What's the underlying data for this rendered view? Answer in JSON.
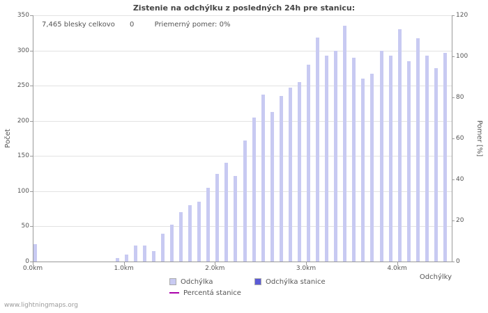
{
  "stats": {
    "total": "7,465 blesky celkovo",
    "station": "0",
    "ratio": "Priemerný pomer: 0%"
  },
  "footer": "www.lightningmaps.org",
  "legend": [
    {
      "label": "Odchýlka",
      "type": "swatch",
      "color": "#c8caf2"
    },
    {
      "label": "Odchýlka stanice",
      "type": "swatch",
      "color": "#5b5bd6"
    },
    {
      "label": "Percentá stanice",
      "type": "line",
      "color": "#aa00aa"
    }
  ],
  "chart_data": {
    "type": "bar",
    "title": "Zistenie na odchýlku z posledných 24h pre stanicu:",
    "x_axis_label": "Odchýlky",
    "x_unit": "km",
    "x_start": 0,
    "x_step": 0.1,
    "x_domain_max": 4.6,
    "x_ticks": [
      {
        "label": "0.0km",
        "km": 0
      },
      {
        "label": "1.0km",
        "km": 1
      },
      {
        "label": "2.0km",
        "km": 2
      },
      {
        "label": "3.0km",
        "km": 3
      },
      {
        "label": "4.0km",
        "km": 4
      }
    ],
    "y_left": {
      "label": "Počet",
      "min": 0,
      "max": 350,
      "ticks": [
        0,
        50,
        100,
        150,
        200,
        250,
        300,
        350
      ]
    },
    "y_right": {
      "label": "Pomer [%]",
      "min": 0,
      "max": 120,
      "ticks": [
        0,
        20,
        40,
        60,
        80,
        100,
        120
      ]
    },
    "grid": true,
    "legend_position": "bottom",
    "series": [
      {
        "name": "Odchýlka",
        "color": "#c8caf2",
        "values": [
          25,
          0,
          0,
          0,
          0,
          0,
          0,
          0,
          0,
          5,
          10,
          23,
          23,
          15,
          40,
          52,
          70,
          80,
          85,
          105,
          125,
          140,
          122,
          172,
          205,
          237,
          213,
          235,
          247,
          255,
          280,
          318,
          293,
          300,
          335,
          290,
          260,
          267,
          300,
          293,
          330,
          285,
          317,
          293,
          275,
          297
        ]
      },
      {
        "name": "Odchýlka stanice",
        "color": "#5b5bd6",
        "values": []
      },
      {
        "name": "Percentá stanice",
        "color": "#aa00aa",
        "values": []
      }
    ]
  }
}
